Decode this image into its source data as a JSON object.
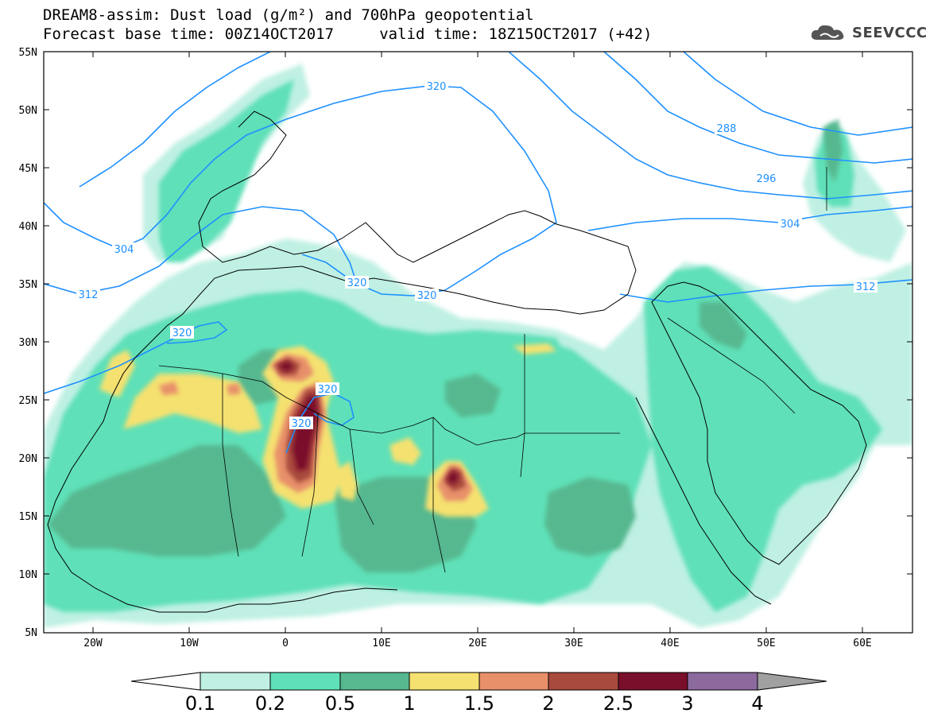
{
  "title": {
    "line1": "DREAM8-assim: Dust load (g/m²) and 700hPa geopotential",
    "line2": "Forecast base time: 00Z14OCT2017     valid time: 18Z15OCT2017 (+42)"
  },
  "logo": {
    "text": "SEEVCCC",
    "icon": "cloud-icon"
  },
  "map": {
    "lat_labels": [
      "55N",
      "50N",
      "45N",
      "40N",
      "35N",
      "30N",
      "25N",
      "20N",
      "15N",
      "10N",
      "5N"
    ],
    "lon_labels": [
      "20W",
      "10W",
      "0",
      "10E",
      "20E",
      "30E",
      "40E",
      "50E",
      "60E"
    ],
    "contour_labels": [
      "320",
      "288",
      "296",
      "304",
      "304",
      "312",
      "312",
      "320",
      "320",
      "320",
      "320",
      "320"
    ]
  },
  "colorbar": {
    "labels": [
      "0.1",
      "0.2",
      "0.5",
      "1",
      "1.5",
      "2",
      "2.5",
      "3",
      "4"
    ],
    "colors": [
      "#bff0e3",
      "#5fe0b8",
      "#57b88f",
      "#f5e170",
      "#e8906a",
      "#a84a3d",
      "#7a0f2b",
      "#8c6a9e",
      "#a0a0a0"
    ]
  }
}
